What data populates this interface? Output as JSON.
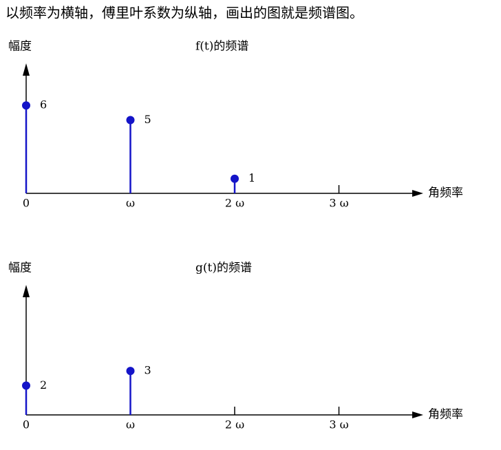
{
  "heading": "以频率为横轴，傅里叶系数为纵轴，画出的图就是频谱图。",
  "chart_data": [
    {
      "type": "stem",
      "title": "f(t)的频谱",
      "y_label": "幅度",
      "x_label": "角频率",
      "categories": [
        "0",
        "ω",
        "2 ω",
        "3 ω"
      ],
      "values": [
        6,
        5,
        1,
        null
      ],
      "color": "#1414c8",
      "ylim": [
        0,
        8.5
      ]
    },
    {
      "type": "stem",
      "title": "g(t)的频谱",
      "y_label": "幅度",
      "x_label": "角频率",
      "categories": [
        "0",
        "ω",
        "2 ω",
        "3 ω"
      ],
      "values": [
        2,
        3,
        null,
        null
      ],
      "color": "#1414c8",
      "ylim": [
        0,
        8.5
      ]
    }
  ]
}
